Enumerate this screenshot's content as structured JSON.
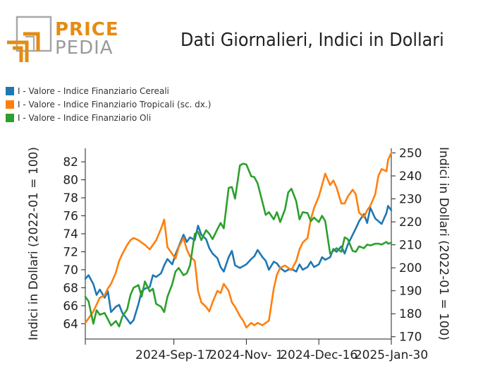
{
  "logo": {
    "word1": "PRICE",
    "word2": "PEDIA",
    "colors": {
      "orange": "#e58b13",
      "gray": "#9a9a9a"
    }
  },
  "title": "Dati Giornalieri, Indici in Dollari",
  "chart_data": {
    "type": "line",
    "title": "Dati Giornalieri, Indici in Dollari",
    "ylabel": "Indici in Dollari (2022-01 = 100)",
    "y2label": "Indici in Dollari (2022-01 = 100)",
    "ylim": [
      62.3,
      83.5
    ],
    "y2lim": [
      169,
      252
    ],
    "yticks": [
      64,
      66,
      68,
      70,
      72,
      74,
      76,
      78,
      80,
      82
    ],
    "y2ticks": [
      170,
      180,
      190,
      200,
      210,
      220,
      230,
      240,
      250
    ],
    "x_range": [
      "2024-07-24",
      "2025-01-30"
    ],
    "x_ticks": [
      {
        "date": "2024-07-24",
        "label": ""
      },
      {
        "date": "2024-09-17",
        "label": "2024-Sep-17"
      },
      {
        "date": "2024-11-01",
        "label": "2024-Nov- 1"
      },
      {
        "date": "2024-12-16",
        "label": "2024-Dec-16"
      },
      {
        "date": "2025-01-30",
        "label": "2025-Jan-30"
      }
    ],
    "grid": false,
    "legend_position": "top-left",
    "series": [
      {
        "name": "I - Valore - Indice Finanziario Cereali",
        "axis": "left",
        "color": "#1f77b4",
        "points": [
          [
            "2024-07-24",
            69.0
          ],
          [
            "2024-07-26",
            69.4
          ],
          [
            "2024-07-29",
            68.4
          ],
          [
            "2024-07-31",
            67.2
          ],
          [
            "2024-08-02",
            67.8
          ],
          [
            "2024-08-05",
            66.9
          ],
          [
            "2024-08-07",
            67.6
          ],
          [
            "2024-08-09",
            65.3
          ],
          [
            "2024-08-12",
            65.9
          ],
          [
            "2024-08-14",
            66.1
          ],
          [
            "2024-08-16",
            65.2
          ],
          [
            "2024-08-19",
            64.5
          ],
          [
            "2024-08-21",
            64.0
          ],
          [
            "2024-08-23",
            64.4
          ],
          [
            "2024-08-26",
            66.2
          ],
          [
            "2024-08-28",
            67.6
          ],
          [
            "2024-08-30",
            67.9
          ],
          [
            "2024-09-02",
            68.1
          ],
          [
            "2024-09-04",
            69.4
          ],
          [
            "2024-09-06",
            69.2
          ],
          [
            "2024-09-09",
            69.6
          ],
          [
            "2024-09-11",
            70.5
          ],
          [
            "2024-09-13",
            71.2
          ],
          [
            "2024-09-16",
            70.6
          ],
          [
            "2024-09-18",
            71.7
          ],
          [
            "2024-09-20",
            72.6
          ],
          [
            "2024-09-23",
            73.9
          ],
          [
            "2024-09-25",
            73.1
          ],
          [
            "2024-09-27",
            73.6
          ],
          [
            "2024-09-30",
            73.3
          ],
          [
            "2024-10-02",
            74.9
          ],
          [
            "2024-10-04",
            73.9
          ],
          [
            "2024-10-07",
            73.4
          ],
          [
            "2024-10-09",
            72.4
          ],
          [
            "2024-10-11",
            71.8
          ],
          [
            "2024-10-14",
            71.3
          ],
          [
            "2024-10-16",
            70.3
          ],
          [
            "2024-10-18",
            69.8
          ],
          [
            "2024-10-21",
            71.4
          ],
          [
            "2024-10-23",
            72.1
          ],
          [
            "2024-10-25",
            70.5
          ],
          [
            "2024-10-28",
            70.2
          ],
          [
            "2024-10-30",
            70.4
          ],
          [
            "2024-11-01",
            70.6
          ],
          [
            "2024-11-04",
            71.2
          ],
          [
            "2024-11-06",
            71.5
          ],
          [
            "2024-11-08",
            72.2
          ],
          [
            "2024-11-11",
            71.4
          ],
          [
            "2024-11-13",
            71.0
          ],
          [
            "2024-11-15",
            70.0
          ],
          [
            "2024-11-18",
            70.9
          ],
          [
            "2024-11-20",
            70.7
          ],
          [
            "2024-11-22",
            70.2
          ],
          [
            "2024-11-25",
            69.8
          ],
          [
            "2024-11-27",
            70.0
          ],
          [
            "2024-11-29",
            70.1
          ],
          [
            "2024-12-02",
            69.8
          ],
          [
            "2024-12-04",
            70.6
          ],
          [
            "2024-12-06",
            70.0
          ],
          [
            "2024-12-09",
            70.3
          ],
          [
            "2024-12-11",
            70.9
          ],
          [
            "2024-12-13",
            70.3
          ],
          [
            "2024-12-16",
            70.6
          ],
          [
            "2024-12-18",
            71.4
          ],
          [
            "2024-12-20",
            71.1
          ],
          [
            "2024-12-23",
            71.4
          ],
          [
            "2024-12-25",
            72.3
          ],
          [
            "2024-12-27",
            72.0
          ],
          [
            "2024-12-30",
            72.6
          ],
          [
            "2025-01-01",
            71.8
          ],
          [
            "2025-01-03",
            72.8
          ],
          [
            "2025-01-06",
            73.9
          ],
          [
            "2025-01-08",
            74.6
          ],
          [
            "2025-01-10",
            75.4
          ],
          [
            "2025-01-13",
            76.2
          ],
          [
            "2025-01-15",
            75.2
          ],
          [
            "2025-01-17",
            76.9
          ],
          [
            "2025-01-20",
            75.7
          ],
          [
            "2025-01-22",
            75.4
          ],
          [
            "2025-01-24",
            75.1
          ],
          [
            "2025-01-27",
            76.3
          ],
          [
            "2025-01-28",
            77.1
          ],
          [
            "2025-01-30",
            76.6
          ]
        ]
      },
      {
        "name": "I - Valore - Indice Finanziario Tropicali (sc. dx.)",
        "axis": "right",
        "color": "#ff7f0e",
        "points": [
          [
            "2024-07-24",
            176
          ],
          [
            "2024-07-26",
            178
          ],
          [
            "2024-07-29",
            181
          ],
          [
            "2024-07-31",
            184
          ],
          [
            "2024-08-02",
            187
          ],
          [
            "2024-08-05",
            188
          ],
          [
            "2024-08-07",
            191
          ],
          [
            "2024-08-09",
            193
          ],
          [
            "2024-08-12",
            198
          ],
          [
            "2024-08-14",
            203
          ],
          [
            "2024-08-16",
            206
          ],
          [
            "2024-08-19",
            210
          ],
          [
            "2024-08-21",
            212
          ],
          [
            "2024-08-23",
            213
          ],
          [
            "2024-08-26",
            212
          ],
          [
            "2024-08-28",
            211
          ],
          [
            "2024-08-30",
            210
          ],
          [
            "2024-09-02",
            208
          ],
          [
            "2024-09-04",
            210
          ],
          [
            "2024-09-06",
            212
          ],
          [
            "2024-09-09",
            217
          ],
          [
            "2024-09-11",
            221
          ],
          [
            "2024-09-13",
            209
          ],
          [
            "2024-09-16",
            206
          ],
          [
            "2024-09-18",
            204
          ],
          [
            "2024-09-20",
            209
          ],
          [
            "2024-09-23",
            213
          ],
          [
            "2024-09-25",
            208
          ],
          [
            "2024-09-27",
            205
          ],
          [
            "2024-09-30",
            203
          ],
          [
            "2024-10-02",
            190
          ],
          [
            "2024-10-04",
            185
          ],
          [
            "2024-10-07",
            183
          ],
          [
            "2024-10-09",
            181
          ],
          [
            "2024-10-11",
            185
          ],
          [
            "2024-10-14",
            190
          ],
          [
            "2024-10-16",
            189
          ],
          [
            "2024-10-18",
            193
          ],
          [
            "2024-10-21",
            190
          ],
          [
            "2024-10-23",
            185
          ],
          [
            "2024-10-25",
            183
          ],
          [
            "2024-10-28",
            179
          ],
          [
            "2024-10-30",
            177
          ],
          [
            "2024-11-01",
            174
          ],
          [
            "2024-11-04",
            176
          ],
          [
            "2024-11-06",
            175
          ],
          [
            "2024-11-08",
            176
          ],
          [
            "2024-11-11",
            175
          ],
          [
            "2024-11-13",
            176
          ],
          [
            "2024-11-15",
            177
          ],
          [
            "2024-11-18",
            191
          ],
          [
            "2024-11-20",
            197
          ],
          [
            "2024-11-22",
            200
          ],
          [
            "2024-11-25",
            201
          ],
          [
            "2024-11-27",
            200
          ],
          [
            "2024-11-29",
            199
          ],
          [
            "2024-12-02",
            203
          ],
          [
            "2024-12-04",
            208
          ],
          [
            "2024-12-06",
            211
          ],
          [
            "2024-12-09",
            213
          ],
          [
            "2024-12-11",
            221
          ],
          [
            "2024-12-13",
            226
          ],
          [
            "2024-12-16",
            231
          ],
          [
            "2024-12-18",
            236
          ],
          [
            "2024-12-20",
            241
          ],
          [
            "2024-12-23",
            236
          ],
          [
            "2024-12-25",
            238
          ],
          [
            "2024-12-27",
            235
          ],
          [
            "2024-12-30",
            228
          ],
          [
            "2025-01-01",
            228
          ],
          [
            "2025-01-03",
            231
          ],
          [
            "2025-01-06",
            234
          ],
          [
            "2025-01-08",
            232
          ],
          [
            "2025-01-10",
            224
          ],
          [
            "2025-01-13",
            222
          ],
          [
            "2025-01-15",
            225
          ],
          [
            "2025-01-17",
            227
          ],
          [
            "2025-01-20",
            232
          ],
          [
            "2025-01-22",
            240
          ],
          [
            "2025-01-24",
            243
          ],
          [
            "2025-01-27",
            242
          ],
          [
            "2025-01-28",
            247
          ],
          [
            "2025-01-30",
            250
          ]
        ]
      },
      {
        "name": "I - Valore - Indice Finanziario Oli",
        "axis": "left",
        "color": "#2ca02c",
        "points": [
          [
            "2024-07-24",
            67.0
          ],
          [
            "2024-07-26",
            66.5
          ],
          [
            "2024-07-29",
            64.0
          ],
          [
            "2024-07-31",
            65.5
          ],
          [
            "2024-08-02",
            65.0
          ],
          [
            "2024-08-05",
            65.2
          ],
          [
            "2024-08-07",
            64.5
          ],
          [
            "2024-08-09",
            63.8
          ],
          [
            "2024-08-12",
            64.3
          ],
          [
            "2024-08-14",
            63.7
          ],
          [
            "2024-08-16",
            64.8
          ],
          [
            "2024-08-19",
            65.6
          ],
          [
            "2024-08-21",
            67.2
          ],
          [
            "2024-08-23",
            68.0
          ],
          [
            "2024-08-26",
            68.3
          ],
          [
            "2024-08-28",
            67.0
          ],
          [
            "2024-08-30",
            68.7
          ],
          [
            "2024-09-02",
            67.6
          ],
          [
            "2024-09-04",
            67.9
          ],
          [
            "2024-09-06",
            66.2
          ],
          [
            "2024-09-09",
            65.9
          ],
          [
            "2024-09-11",
            65.3
          ],
          [
            "2024-09-13",
            67.0
          ],
          [
            "2024-09-16",
            68.4
          ],
          [
            "2024-09-18",
            69.8
          ],
          [
            "2024-09-20",
            70.2
          ],
          [
            "2024-09-23",
            69.4
          ],
          [
            "2024-09-25",
            69.6
          ],
          [
            "2024-09-27",
            70.5
          ],
          [
            "2024-09-30",
            74.0
          ],
          [
            "2024-10-02",
            74.2
          ],
          [
            "2024-10-04",
            73.3
          ],
          [
            "2024-10-07",
            74.4
          ],
          [
            "2024-10-09",
            74.0
          ],
          [
            "2024-10-11",
            73.4
          ],
          [
            "2024-10-14",
            74.5
          ],
          [
            "2024-10-16",
            75.2
          ],
          [
            "2024-10-18",
            74.6
          ],
          [
            "2024-10-21",
            79.1
          ],
          [
            "2024-10-23",
            79.2
          ],
          [
            "2024-10-25",
            77.9
          ],
          [
            "2024-10-28",
            81.6
          ],
          [
            "2024-10-30",
            81.8
          ],
          [
            "2024-11-01",
            81.7
          ],
          [
            "2024-11-04",
            80.4
          ],
          [
            "2024-11-06",
            80.3
          ],
          [
            "2024-11-08",
            79.6
          ],
          [
            "2024-11-11",
            77.5
          ],
          [
            "2024-11-13",
            76.1
          ],
          [
            "2024-11-15",
            76.4
          ],
          [
            "2024-11-18",
            75.6
          ],
          [
            "2024-11-20",
            76.4
          ],
          [
            "2024-11-22",
            75.3
          ],
          [
            "2024-11-25",
            76.7
          ],
          [
            "2024-11-27",
            78.6
          ],
          [
            "2024-11-29",
            79.0
          ],
          [
            "2024-12-02",
            77.6
          ],
          [
            "2024-12-04",
            75.6
          ],
          [
            "2024-12-06",
            76.4
          ],
          [
            "2024-12-09",
            76.3
          ],
          [
            "2024-12-11",
            75.4
          ],
          [
            "2024-12-13",
            75.8
          ],
          [
            "2024-12-16",
            75.3
          ],
          [
            "2024-12-18",
            76.0
          ],
          [
            "2024-12-20",
            75.4
          ],
          [
            "2024-12-23",
            71.8
          ],
          [
            "2024-12-25",
            72.1
          ],
          [
            "2024-12-27",
            72.4
          ],
          [
            "2024-12-30",
            72.0
          ],
          [
            "2025-01-01",
            73.6
          ],
          [
            "2025-01-03",
            73.4
          ],
          [
            "2025-01-06",
            72.1
          ],
          [
            "2025-01-08",
            72.0
          ],
          [
            "2025-01-10",
            72.6
          ],
          [
            "2025-01-13",
            72.4
          ],
          [
            "2025-01-15",
            72.8
          ],
          [
            "2025-01-17",
            72.7
          ],
          [
            "2025-01-20",
            72.9
          ],
          [
            "2025-01-22",
            72.9
          ],
          [
            "2025-01-24",
            72.8
          ],
          [
            "2025-01-27",
            73.1
          ],
          [
            "2025-01-28",
            72.9
          ],
          [
            "2025-01-30",
            73.0
          ]
        ]
      }
    ]
  }
}
